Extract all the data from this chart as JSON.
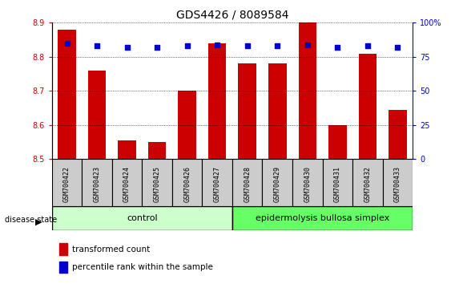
{
  "title": "GDS4426 / 8089584",
  "samples": [
    "GSM700422",
    "GSM700423",
    "GSM700424",
    "GSM700425",
    "GSM700426",
    "GSM700427",
    "GSM700428",
    "GSM700429",
    "GSM700430",
    "GSM700431",
    "GSM700432",
    "GSM700433"
  ],
  "transformed_count": [
    8.88,
    8.76,
    8.555,
    8.55,
    8.7,
    8.84,
    8.78,
    8.78,
    8.9,
    8.6,
    8.81,
    8.645
  ],
  "percentile_rank": [
    85,
    83,
    82,
    82,
    83,
    84,
    83,
    83,
    84,
    82,
    83,
    82
  ],
  "ylim_left": [
    8.5,
    8.9
  ],
  "ylim_right": [
    0,
    100
  ],
  "yticks_left": [
    8.5,
    8.6,
    8.7,
    8.8,
    8.9
  ],
  "yticks_right": [
    0,
    25,
    50,
    75,
    100
  ],
  "bar_color": "#cc0000",
  "dot_color": "#0000cc",
  "bar_bottom": 8.5,
  "control_samples": 6,
  "control_label": "control",
  "disease_label": "epidermolysis bullosa simplex",
  "disease_state_label": "disease state",
  "legend_bar_label": "transformed count",
  "legend_dot_label": "percentile rank within the sample",
  "control_bg": "#ccffcc",
  "disease_bg": "#66ff66",
  "xlabel_bg": "#cccccc",
  "fig_bg": "#ffffff"
}
